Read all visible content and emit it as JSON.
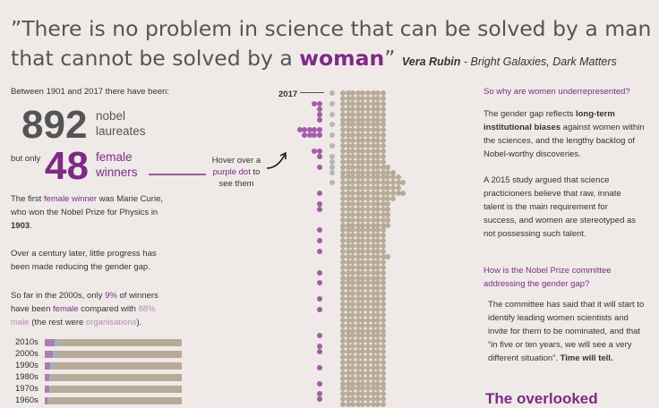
{
  "quote": {
    "open_mark": "”",
    "text_before": "There is no problem in science that can be solved by a man that cannot be solved by a ",
    "highlight": "woman",
    "close_mark": "”",
    "author": "Vera Rubin",
    "source": " - Bright Galaxies, Dark Matters"
  },
  "stats": {
    "intro": "Between 1901 and 2017 there have been:",
    "laureates_count": "892",
    "laureates_label_1": "nobel",
    "laureates_label_2": "laureates",
    "but_only": "but only",
    "female_count": "48",
    "female_label_1": "female",
    "female_label_2": "winners"
  },
  "hover_hint": {
    "line1": "Hover over a",
    "line2_highlight": "purple dot",
    "line2_rest": " to",
    "line3": "see them"
  },
  "narrative": {
    "p1_a": "The first ",
    "p1_highlight": "female winner",
    "p1_b": " was Marie Curie, who won the Nobel Prize for Physics in ",
    "p1_year": "1903",
    "p1_c": ".",
    "p2": "Over a century later, little progress has been made reducing the gender gap.",
    "p3_a": "So far in the 2000s, only ",
    "p3_pct": "9%",
    "p3_b": " of winners have been ",
    "p3_female": "female",
    "p3_c": " compared with ",
    "p3_male": "88% male",
    "p3_d": " (the rest were ",
    "p3_orgs": "organisations",
    "p3_e": ")."
  },
  "decades": [
    {
      "label": "2010s",
      "female_pct": 7,
      "org_pct": 4
    },
    {
      "label": "2000s",
      "female_pct": 6,
      "org_pct": 3
    },
    {
      "label": "1990s",
      "female_pct": 4,
      "org_pct": 3
    },
    {
      "label": "1980s",
      "female_pct": 3,
      "org_pct": 2
    },
    {
      "label": "1970s",
      "female_pct": 3,
      "org_pct": 2
    },
    {
      "label": "1960s",
      "female_pct": 2,
      "org_pct": 2
    }
  ],
  "timeline": {
    "year_label": "2017"
  },
  "right": {
    "h1": "So why are women underrepresented?",
    "p1_a": "The gender gap reflects ",
    "p1_bold": "long-term institutional biases",
    "p1_b": " against women within the sciences, and the lengthy backlog of Nobel-worthy discoveries.",
    "p2": "A 2015 study argued that science practicioners believe that raw, innate talent is the main requirement for success, and women are stereotyped as not possessing such talent.",
    "h2": "How is the Nobel Prize committee addressing the gender gap?",
    "p3_a": "The committee has said that it will start to identify leading women scientists and invite for them to be nominated, and that “in five or ten years, we will see a very different situation”. ",
    "p3_bold": "Time will tell.",
    "h3": "The overlooked"
  },
  "colors": {
    "purple": "#7d2a85",
    "dot_purple": "#a55ba8",
    "dot_tan": "#b8aa98",
    "dot_gray": "#b4b6bb",
    "background": "#efeae8"
  }
}
